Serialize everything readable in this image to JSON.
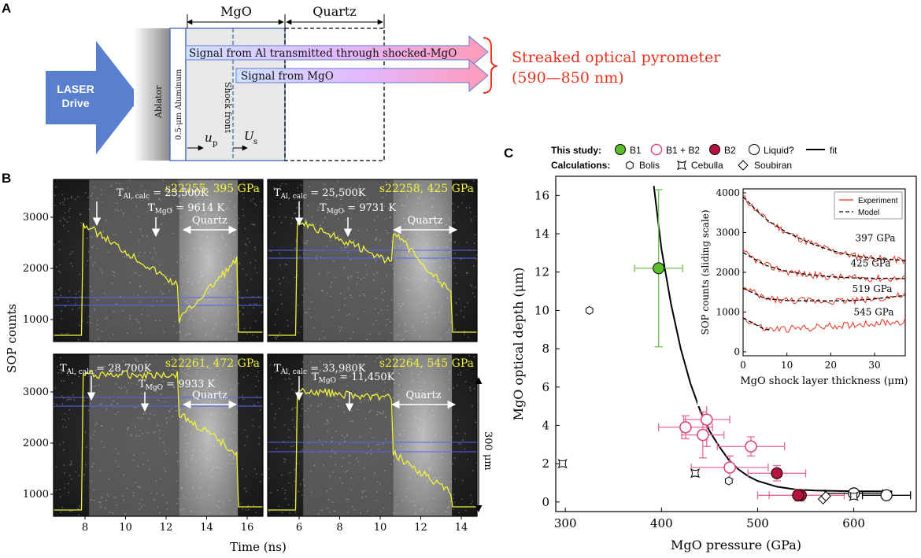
{
  "panel_a": {
    "label": "A",
    "laser": "LASER",
    "drive": "Drive",
    "ablator": "Ablator",
    "aluminum": "0.5-μm Aluminum",
    "shock_front": "Shock front",
    "mgo": "MgO",
    "quartz": "Quartz",
    "signal_al": "Signal from Al transmitted through shocked-MgO",
    "signal_mgo": "Signal from MgO",
    "up": "u",
    "up_sub": "p",
    "us": "U",
    "us_sub": "s",
    "sop_title": "Streaked optical pyrometer",
    "sop_range": "(590—850 nm)"
  },
  "panel_b": {
    "label": "B",
    "ylabel": "SOP counts",
    "xlabel": "Time (ns)",
    "scale_label": "300 μm",
    "left_yticks": [
      "1000",
      "2000",
      "3000"
    ],
    "left_xticks": [
      "8",
      "10",
      "12",
      "14",
      "16"
    ],
    "right_xticks": [
      "6",
      "8",
      "10",
      "12",
      "14"
    ],
    "quartz": "Quartz",
    "shots": [
      {
        "id": "s22255, 395 GPa",
        "tal": "= 23,500K",
        "tmgo": "= 9614 K"
      },
      {
        "id": "s22258, 425 GPa",
        "tal": "= 25,500K",
        "tmgo": "= 9731 K"
      },
      {
        "id": "s22261, 472 GPa",
        "tal": "= 28,700K",
        "tmgo": "= 9933 K"
      },
      {
        "id": "s22264, 545 GPa",
        "tal": "= 33,980K",
        "tmgo": "= 11,450K"
      }
    ],
    "tal_base": "T",
    "tal_sub": "Al, calc",
    "tmgo_base": "T",
    "tmgo_sub": "MgO"
  },
  "panel_c": {
    "label": "C",
    "legend1_title": "This study:",
    "legend_b1": "B1",
    "legend_b1b2": "B1 + B2",
    "legend_b2": "B2",
    "legend_liquid": "Liquid?",
    "legend_fit": "fit",
    "legend2_title": "Calculations:",
    "legend_bolis": "Bolis",
    "legend_cebulla": "Cebulla",
    "legend_soubiran": "Soubiran",
    "inset_legend_exp": "Experiment",
    "inset_legend_model": "Model",
    "inset_ylabel": "SOP counts (sliding scale)",
    "inset_xlabel": "MgO shock layer thickness (μm)",
    "inset_curve_labels": [
      "397 GPa",
      "425 GPa",
      "519 GPa",
      "545 GPa"
    ]
  },
  "colors": {
    "b1": "#5cbf2a",
    "b1b2": "#e0457b",
    "b2": "#b5123e",
    "error_b1": "#6fc24a",
    "error_pink": "#e86a93",
    "sop_red": "#e8331f",
    "trace": "#f2f23a",
    "laser_blue": "#5b7fcf"
  },
  "chart_data": [
    {
      "type": "scatter",
      "title": "",
      "xlabel": "MgO pressure (GPa)",
      "ylabel": "MgO optical depth (μm)",
      "xlim": [
        290,
        665
      ],
      "ylim": [
        -0.5,
        17
      ],
      "xticks": [
        300,
        400,
        500,
        600
      ],
      "yticks": [
        0,
        2,
        4,
        6,
        8,
        10,
        12,
        14,
        16
      ],
      "series": [
        {
          "name": "B1",
          "points": [
            {
              "x": 397,
              "y": 12.2,
              "xerr": 25,
              "yerr": 4.1
            }
          ]
        },
        {
          "name": "B1 + B2",
          "points": [
            {
              "x": 425,
              "y": 3.9,
              "xerr": 28,
              "yerr": 0.6
            },
            {
              "x": 447,
              "y": 4.3,
              "xerr": 24,
              "yerr": 1.4
            },
            {
              "x": 443,
              "y": 3.5,
              "xerr": 22,
              "yerr": 1.2
            },
            {
              "x": 493,
              "y": 2.9,
              "xerr": 35,
              "yerr": 0.5
            },
            {
              "x": 471,
              "y": 1.8,
              "xerr": 40,
              "yerr": 0.6
            }
          ]
        },
        {
          "name": "B2",
          "points": [
            {
              "x": 520,
              "y": 1.5,
              "xerr": 30,
              "yerr": 0.4
            },
            {
              "x": 545,
              "y": 0.35,
              "xerr": 45,
              "yerr": 0.3
            },
            {
              "x": 542,
              "y": 0.35,
              "xerr": 30,
              "yerr": 0.3
            }
          ]
        },
        {
          "name": "Liquid?",
          "points": [
            {
              "x": 600,
              "y": 0.45,
              "xerr": 30,
              "yerr": 0.2
            },
            {
              "x": 634,
              "y": 0.35,
              "xerr": 25,
              "yerr": 0.2
            }
          ]
        },
        {
          "name": "Bolis",
          "points": [
            {
              "x": 325,
              "y": 10.0
            },
            {
              "x": 470,
              "y": 1.1
            }
          ]
        },
        {
          "name": "Cebulla",
          "points": [
            {
              "x": 297,
              "y": 2.0
            },
            {
              "x": 435,
              "y": 1.5
            },
            {
              "x": 600,
              "y": 0.3
            }
          ]
        },
        {
          "name": "Soubiran",
          "points": [
            {
              "x": 568,
              "y": 0.15
            },
            {
              "x": 571,
              "y": 0.3
            }
          ]
        },
        {
          "name": "fit",
          "points": [
            {
              "x": 392,
              "y": 16.5
            },
            {
              "x": 400,
              "y": 13.2
            },
            {
              "x": 410,
              "y": 10.3
            },
            {
              "x": 420,
              "y": 8.0
            },
            {
              "x": 430,
              "y": 6.2
            },
            {
              "x": 440,
              "y": 4.8
            },
            {
              "x": 450,
              "y": 3.7
            },
            {
              "x": 460,
              "y": 2.9
            },
            {
              "x": 470,
              "y": 2.2
            },
            {
              "x": 480,
              "y": 1.7
            },
            {
              "x": 490,
              "y": 1.35
            },
            {
              "x": 500,
              "y": 1.1
            },
            {
              "x": 520,
              "y": 0.8
            },
            {
              "x": 540,
              "y": 0.65
            },
            {
              "x": 560,
              "y": 0.6
            },
            {
              "x": 600,
              "y": 0.56
            },
            {
              "x": 640,
              "y": 0.55
            }
          ]
        }
      ]
    },
    {
      "type": "line",
      "title": "",
      "xlabel": "MgO shock layer thickness (μm)",
      "ylabel": "SOP counts (sliding scale)",
      "xlim": [
        0,
        37
      ],
      "ylim": [
        -100,
        4100
      ],
      "xticks": [
        0,
        10,
        20,
        30
      ],
      "yticks": [
        0,
        1000,
        2000,
        3000,
        4000
      ],
      "series": [
        {
          "name": "397 GPa",
          "x": [
            0,
            5,
            10,
            15,
            20,
            25,
            30,
            37
          ],
          "y": [
            3900,
            3350,
            3000,
            2750,
            2550,
            2420,
            2350,
            2300
          ]
        },
        {
          "name": "425 GPa",
          "x": [
            0,
            5,
            10,
            15,
            20,
            25,
            30,
            37
          ],
          "y": [
            2500,
            2180,
            2020,
            1940,
            1890,
            1860,
            1850,
            1840
          ]
        },
        {
          "name": "519 GPa",
          "x": [
            0,
            5,
            10,
            15,
            20,
            25,
            30,
            37
          ],
          "y": [
            1600,
            1340,
            1290,
            1280,
            1280,
            1290,
            1330,
            1420
          ]
        },
        {
          "name": "545 GPa",
          "x": [
            0,
            5,
            10,
            15,
            20,
            25,
            30,
            37
          ],
          "y": [
            850,
            560,
            570,
            600,
            640,
            680,
            720,
            760
          ]
        }
      ]
    }
  ]
}
